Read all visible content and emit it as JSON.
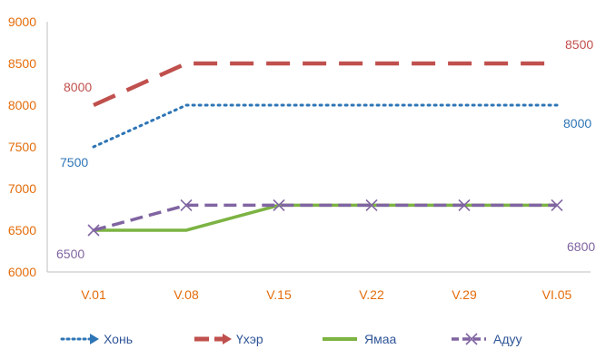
{
  "chart_data": {
    "type": "line",
    "categories": [
      "V.01",
      "V.08",
      "V.15",
      "V.22",
      "V.29",
      "VI.05"
    ],
    "ylim": [
      6000,
      9000
    ],
    "yticks": [
      6000,
      6500,
      7000,
      7500,
      8000,
      8500,
      9000
    ],
    "grid": false,
    "legend_position": "bottom",
    "series": [
      {
        "name": "Хонь",
        "values": [
          7500,
          8000,
          8000,
          8000,
          8000,
          8000
        ],
        "color": "#2e75b6",
        "style": "dotted",
        "marker": "none",
        "labels": {
          "first": "7500",
          "last": "8000"
        }
      },
      {
        "name": "Үхэр",
        "values": [
          8000,
          8500,
          8500,
          8500,
          8500,
          8500
        ],
        "color": "#c0504d",
        "style": "dashed",
        "marker": "none",
        "labels": {
          "first": "8000",
          "last": "8500"
        }
      },
      {
        "name": "Ямаа",
        "values": [
          6500,
          6500,
          6800,
          6800,
          6800,
          6800
        ],
        "color": "#7cb342",
        "style": "solid",
        "marker": "none",
        "labels": {}
      },
      {
        "name": "Адуу",
        "values": [
          6500,
          6800,
          6800,
          6800,
          6800,
          6800
        ],
        "color": "#8064a2",
        "style": "dashed",
        "marker": "x",
        "labels": {
          "first": "6500",
          "last": "6800"
        }
      }
    ]
  }
}
